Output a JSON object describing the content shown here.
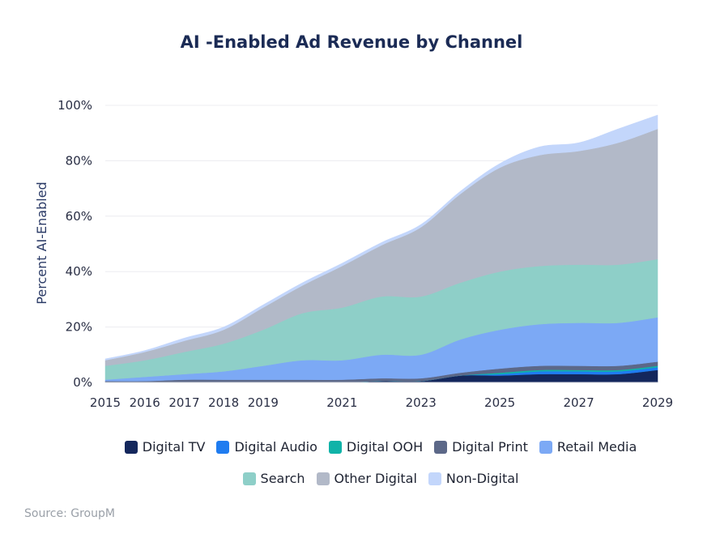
{
  "chart_data": {
    "type": "area",
    "title": "AI -Enabled Ad Revenue by Channel",
    "ylabel": "Percent AI-Enabled",
    "xlabel": "",
    "xlim": [
      2015,
      2029
    ],
    "ylim": [
      0,
      100
    ],
    "x_tick_labels": [
      "2015",
      "2016",
      "2017",
      "2018",
      "2019",
      "2021",
      "2023",
      "2025",
      "2027",
      "2029"
    ],
    "y_tick_labels": [
      "0%",
      "20%",
      "40%",
      "60%",
      "80%",
      "100%"
    ],
    "grid": true,
    "legend_position": "bottom",
    "stacked": true,
    "x": [
      2015,
      2016,
      2017,
      2018,
      2019,
      2020,
      2021,
      2022,
      2023,
      2024,
      2025,
      2026,
      2027,
      2028,
      2029
    ],
    "series": [
      {
        "name": "Digital TV",
        "color": "#14275c",
        "values": [
          0,
          0,
          0,
          0,
          0,
          0,
          0,
          0.5,
          0.5,
          2.5,
          2.5,
          3,
          3,
          3,
          4.5
        ]
      },
      {
        "name": "Digital Audio",
        "color": "#1f7cf0",
        "values": [
          0,
          0,
          0,
          0,
          0,
          0,
          0,
          0,
          0,
          0,
          0.5,
          1,
          1,
          1,
          1
        ]
      },
      {
        "name": "Digital OOH",
        "color": "#10b3a8",
        "values": [
          0,
          0,
          0,
          0,
          0,
          0,
          0,
          0,
          0,
          0,
          0.5,
          0.5,
          0.5,
          0.5,
          0.5
        ]
      },
      {
        "name": "Digital Print",
        "color": "#5c6888",
        "values": [
          0.5,
          0.5,
          1,
          1,
          1,
          1,
          1,
          1,
          1,
          1,
          1.5,
          1.5,
          1.5,
          1.5,
          1.5
        ]
      },
      {
        "name": "Retail Media",
        "color": "#7ca9f5",
        "values": [
          0.5,
          1.5,
          2,
          3,
          5,
          7,
          7,
          8.5,
          8.5,
          12,
          14,
          15,
          15.5,
          15.5,
          16
        ]
      },
      {
        "name": "Search",
        "color": "#8ecfc8",
        "values": [
          5,
          6,
          8,
          10,
          13,
          17,
          19,
          21,
          21,
          20.5,
          21,
          21,
          21,
          21,
          21
        ]
      },
      {
        "name": "Other Digital",
        "color": "#b2b9c8",
        "values": [
          2,
          3,
          4,
          5,
          8,
          10,
          15,
          18.5,
          25,
          32,
          37.5,
          40,
          41,
          44,
          47
        ]
      },
      {
        "name": "Non-Digital",
        "color": "#c3d6fb",
        "values": [
          0.5,
          0.5,
          1,
          1,
          1,
          1,
          1,
          1,
          1,
          1,
          1.5,
          3,
          3,
          5,
          5
        ]
      }
    ]
  },
  "source": "Source: GroupM"
}
